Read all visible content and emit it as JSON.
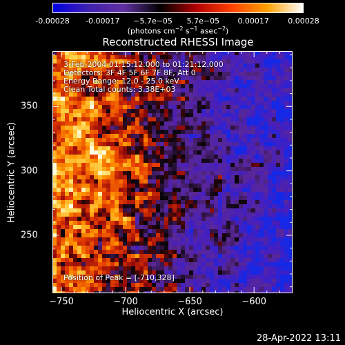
{
  "colorbar": {
    "ticks": [
      "-0.00028",
      "-0.00017",
      "−5.7e−05",
      "5.7e−05",
      "0.00017",
      "0.00028"
    ],
    "units_prefix": "(photons cm",
    "units_sup1": "−2",
    "units_mid1": " s",
    "units_sup2": "−1",
    "units_mid2": " asec",
    "units_sup3": "−2",
    "units_suffix": ")",
    "colors": [
      "#0000e0",
      "#4020b0",
      "#6030a0",
      "#000000",
      "#b00000",
      "#ff4000",
      "#ffa000",
      "#ffffff"
    ]
  },
  "chart_data": {
    "type": "heatmap",
    "title": "Reconstructed RHESSI Image",
    "xlabel": "Heliocentric X (arcsec)",
    "ylabel": "Heliocentric Y (arcsec)",
    "xlim": [
      -757,
      -570
    ],
    "ylim": [
      205,
      393
    ],
    "x_ticks": [
      -750,
      -700,
      -650,
      -600
    ],
    "y_ticks": [
      250,
      300,
      350
    ],
    "info_lines": [
      "3-Feb-2004 01:15:12.000 to 01:21:12.000",
      "Detectors: 3F 4F 5F 6F 7F 8F, Att 0",
      "Energy Range: 12.0 - 25.0 keV",
      "Clean     Total counts: 3.38E+03"
    ],
    "peak_label": "Position of Peak = [-710,328]",
    "peak": [
      -710,
      328
    ],
    "grid": false
  },
  "timestamp": "28-Apr-2022 13:11"
}
